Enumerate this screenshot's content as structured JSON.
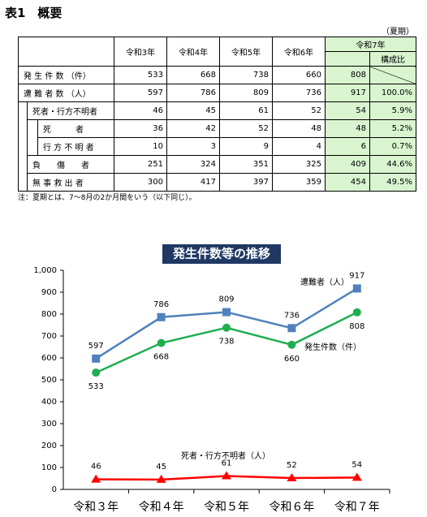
{
  "header": {
    "title": "表1　概要",
    "period": "（夏期）"
  },
  "table": {
    "columns": [
      "令和3年",
      "令和4年",
      "令和5年",
      "令和6年",
      "令和7年"
    ],
    "sub": "構成比",
    "rows": [
      {
        "label": "発 生 件 数 （件）",
        "values": [
          533,
          668,
          738,
          660,
          808
        ]
      },
      {
        "label": "遭 難 者 数 （人）",
        "values": [
          597,
          786,
          809,
          736,
          917
        ],
        "ratio": "100.0%"
      },
      {
        "label": "死者・行方不明者",
        "values": [
          46,
          45,
          61,
          52,
          54
        ],
        "ratio": "5.9%"
      },
      {
        "label": "死　　　者",
        "values": [
          36,
          42,
          52,
          48,
          48
        ],
        "ratio": "5.2%"
      },
      {
        "label": "行 方 不 明 者",
        "values": [
          10,
          3,
          9,
          4,
          6
        ],
        "ratio": "0.7%"
      },
      {
        "label": "負　　傷　　者",
        "values": [
          251,
          324,
          351,
          325,
          409
        ],
        "ratio": "44.6%"
      },
      {
        "label": "無 事 救 出 者",
        "values": [
          300,
          417,
          397,
          359,
          454
        ],
        "ratio": "49.5%"
      }
    ],
    "note": "注：夏期とは、7～8月の2か月間をいう（以下同じ）。"
  },
  "chart_data": {
    "type": "line",
    "title": "発生件数等の推移",
    "categories": [
      "令和３年",
      "令和４年",
      "令和５年",
      "令和６年",
      "令和７年"
    ],
    "ylim": [
      0,
      1000
    ],
    "yticks": [
      0,
      100,
      200,
      300,
      400,
      500,
      600,
      700,
      800,
      900,
      {
        "value": 1000,
        "label": "1,000"
      }
    ],
    "series": [
      {
        "name": "遭難者（人）",
        "color": "#4f81bd",
        "marker": "square",
        "values": [
          597,
          786,
          809,
          736,
          917
        ]
      },
      {
        "name": "発生件数（件）",
        "color": "#1fae4f",
        "marker": "circle",
        "values": [
          533,
          668,
          738,
          660,
          808
        ]
      },
      {
        "name": "死者・行方不明者（人）",
        "color": "#ff0000",
        "marker": "triangle",
        "values": [
          46,
          45,
          61,
          52,
          54
        ]
      }
    ]
  }
}
